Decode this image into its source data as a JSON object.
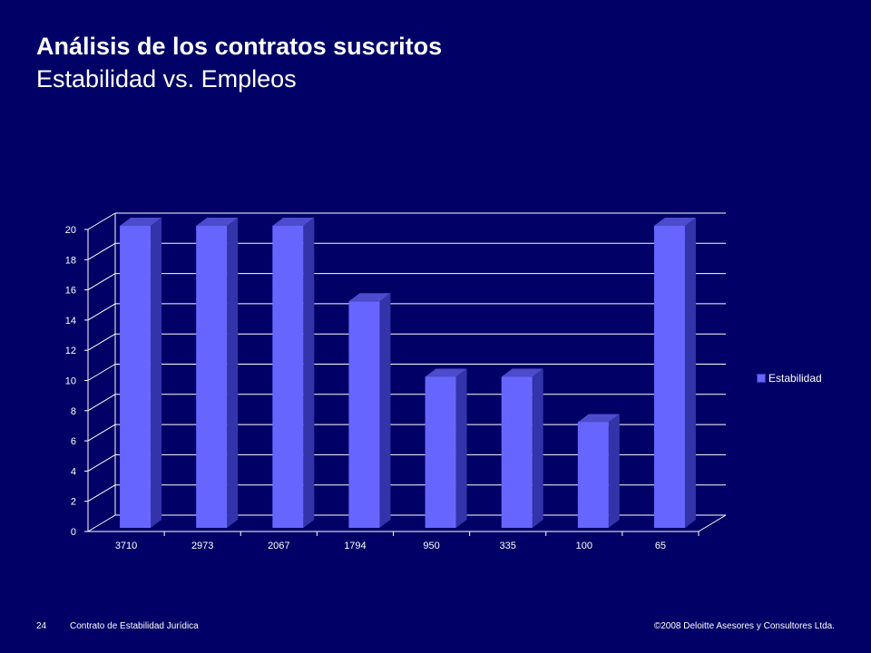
{
  "header": {
    "title": "Análisis de los contratos suscritos",
    "subtitle": "Estabilidad vs. Empleos"
  },
  "footer": {
    "page_number": "24",
    "doc_name": "Contrato de Estabilidad Jurídica",
    "copyright": "©2008 Deloitte Asesores y Consultores Ltda."
  },
  "colors": {
    "background": "#000066",
    "bar_front": "#6666ff",
    "bar_side": "#3333aa",
    "bar_top": "#4c4ccc",
    "grid": "#ffffff"
  },
  "chart_data": {
    "type": "bar",
    "categories": [
      "3710",
      "2973",
      "2067",
      "1794",
      "950",
      "335",
      "100",
      "65"
    ],
    "series": [
      {
        "name": "Estabilidad",
        "values": [
          20,
          20,
          20,
          15,
          10,
          10,
          7,
          20
        ]
      }
    ],
    "ylim": [
      0,
      20
    ],
    "yticks": [
      "0",
      "2",
      "4",
      "6",
      "8",
      "10",
      "12",
      "14",
      "16",
      "18",
      "20"
    ],
    "grid": true,
    "legend_position": "right",
    "three_d": true
  }
}
